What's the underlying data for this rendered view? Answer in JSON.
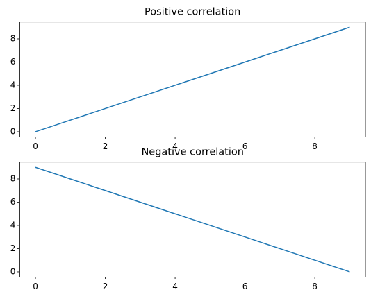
{
  "chart_data": [
    {
      "type": "line",
      "title": "Positive correlation",
      "x": [
        0,
        1,
        2,
        3,
        4,
        5,
        6,
        7,
        8,
        9
      ],
      "values": [
        0,
        1,
        2,
        3,
        4,
        5,
        6,
        7,
        8,
        9
      ],
      "color": "#1f77b4",
      "xlim": [
        -0.45,
        9.45
      ],
      "ylim": [
        -0.45,
        9.45
      ],
      "xticks": [
        0,
        2,
        4,
        6,
        8
      ],
      "yticks": [
        0,
        2,
        4,
        6,
        8
      ]
    },
    {
      "type": "line",
      "title": "Negative correlation",
      "x": [
        0,
        1,
        2,
        3,
        4,
        5,
        6,
        7,
        8,
        9
      ],
      "values": [
        9,
        8,
        7,
        6,
        5,
        4,
        3,
        2,
        1,
        0
      ],
      "color": "#1f77b4",
      "xlim": [
        -0.45,
        9.45
      ],
      "ylim": [
        -0.45,
        9.45
      ],
      "xticks": [
        0,
        2,
        4,
        6,
        8
      ],
      "yticks": [
        0,
        2,
        4,
        6,
        8
      ]
    }
  ]
}
